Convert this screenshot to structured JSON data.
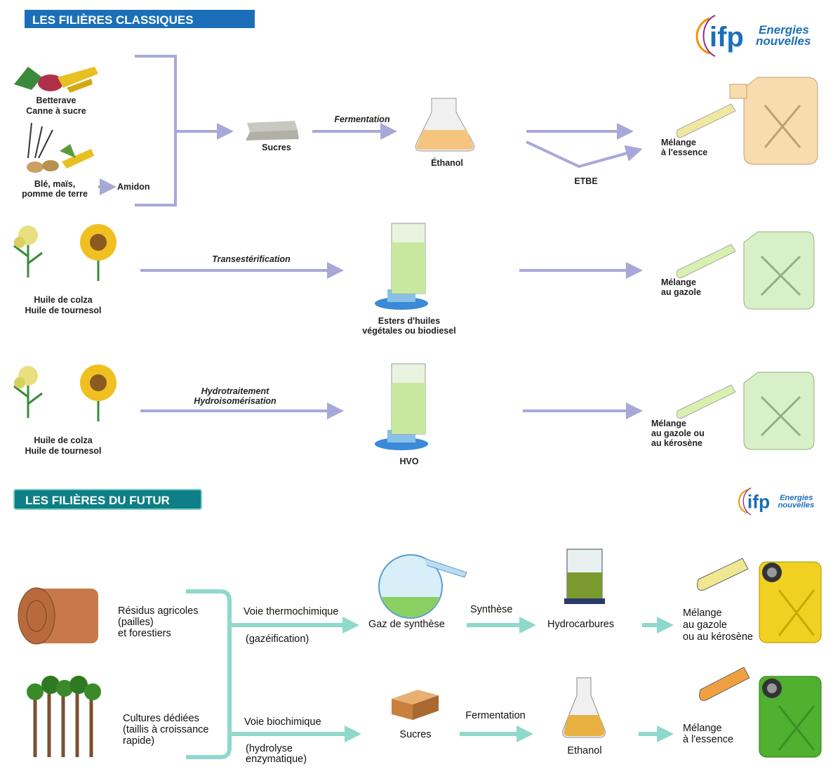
{
  "logo": {
    "mark": "ifp",
    "line1": "Energies",
    "line2": "nouvelles"
  },
  "classic": {
    "title": "LES FILIÈRES CLASSIQUES",
    "sugar_starch": {
      "sources": [
        [
          "Betterave",
          "Canne à sucre"
        ],
        [
          "Blé, maïs,",
          "pomme de terre"
        ]
      ],
      "intermediate": "Amidon",
      "sugars": "Sucres",
      "process": "Fermentation",
      "product": "Éthanol",
      "derivative": "ETBE",
      "blend": [
        "Mélange",
        "à l'essence"
      ]
    },
    "biodiesel": {
      "source": [
        "Huile de colza",
        "Huile de tournesol"
      ],
      "process": [
        "Transestérification"
      ],
      "product": [
        "Esters d'huiles",
        "végétales ou biodiesel"
      ],
      "blend": [
        "Mélange",
        "au gazole"
      ]
    },
    "hvo": {
      "source": [
        "Huile de colza",
        "Huile de tournesol"
      ],
      "process": [
        "Hydrotraitement",
        "Hydroisomérisation"
      ],
      "product": [
        "HVO"
      ],
      "blend": [
        "Mélange",
        "au gazole ou",
        "au kérosène"
      ]
    }
  },
  "future": {
    "title": "LES FILIÈRES DU FUTUR",
    "sources": [
      [
        "Résidus agricoles",
        "(pailles)",
        "et forestiers"
      ],
      [
        "Cultures dédiées",
        "(taillis à croissance",
        "rapide)"
      ]
    ],
    "thermochemical": {
      "route": "Voie thermochimique",
      "route_detail": [
        "(gazéification)"
      ],
      "intermediate": "Gaz de synthèse",
      "process": "Synthèse",
      "product": "Hydrocarbures",
      "blend": [
        "Mélange",
        "au gazole",
        "ou au kérosène"
      ]
    },
    "biochemical": {
      "route": "Voie biochimique",
      "route_detail": [
        "(hydrolyse",
        "enzymatique)"
      ],
      "intermediate": "Sucres",
      "process": "Fermentation",
      "product": "Ethanol",
      "blend": [
        "Mélange",
        "à l'essence"
      ]
    }
  }
}
